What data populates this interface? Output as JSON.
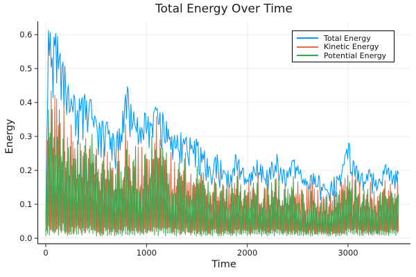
{
  "title": "Total Energy Over Time",
  "axes": {
    "xlabel": "Time",
    "ylabel": "Energy",
    "xticks": [
      "0",
      "1000",
      "2000",
      "3000"
    ],
    "yticks": [
      "0.0",
      "0.1",
      "0.2",
      "0.3",
      "0.4",
      "0.5",
      "0.6"
    ]
  },
  "legend": {
    "position": "top-right",
    "items": [
      {
        "label": "Total Energy"
      },
      {
        "label": "Kinetic Energy"
      },
      {
        "label": "Potential Energy"
      }
    ]
  },
  "chart_data": {
    "type": "line",
    "title": "Total Energy Over Time",
    "xlabel": "Time",
    "ylabel": "Energy",
    "xlim": [
      -85,
      3620
    ],
    "ylim": [
      -0.016,
      0.64
    ],
    "xticks": [
      0,
      1000,
      2000,
      3000
    ],
    "yticks": [
      0,
      0.1,
      0.2,
      0.3,
      0.4,
      0.5,
      0.6
    ],
    "grid": true,
    "legend_position": "top-right",
    "description": "Three densely oscillating energy traces of a damped oscillator. Kinetic and potential energy oscillate in antiphase between ~0 and their decaying envelopes (oscillation period ~18 time units); total energy is a noisy band riding along the top envelope. Envelope decays from ~0.62 at t~30 to ~0.2 by t~3500, with transient bursts near t~800 (0.47), t~1100 (0.45), t~2450 (0.26) and t~3000 (0.30).",
    "oscillation_period_t": 18,
    "t": [
      0,
      25,
      60,
      100,
      150,
      200,
      250,
      300,
      350,
      400,
      450,
      500,
      550,
      600,
      650,
      700,
      750,
      800,
      850,
      900,
      950,
      1000,
      1050,
      1100,
      1150,
      1200,
      1250,
      1300,
      1350,
      1400,
      1450,
      1500,
      1550,
      1600,
      1650,
      1700,
      1750,
      1800,
      1850,
      1900,
      1950,
      2000,
      2050,
      2100,
      2150,
      2200,
      2250,
      2300,
      2350,
      2400,
      2450,
      2500,
      2550,
      2600,
      2650,
      2700,
      2750,
      2800,
      2850,
      2900,
      2950,
      3000,
      3050,
      3100,
      3150,
      3200,
      3250,
      3300,
      3350,
      3400,
      3450,
      3500
    ],
    "series": [
      {
        "name": "Total Energy",
        "color": "#009AFA",
        "style": "noisy band between ~60% and 100% of envelope",
        "envelope_max": [
          0.1,
          0.62,
          0.6,
          0.62,
          0.56,
          0.5,
          0.44,
          0.42,
          0.45,
          0.42,
          0.44,
          0.38,
          0.35,
          0.38,
          0.34,
          0.32,
          0.36,
          0.47,
          0.39,
          0.37,
          0.34,
          0.39,
          0.42,
          0.45,
          0.38,
          0.35,
          0.31,
          0.34,
          0.31,
          0.33,
          0.29,
          0.31,
          0.27,
          0.25,
          0.23,
          0.26,
          0.22,
          0.21,
          0.23,
          0.26,
          0.21,
          0.23,
          0.21,
          0.24,
          0.22,
          0.2,
          0.23,
          0.25,
          0.21,
          0.2,
          0.26,
          0.22,
          0.19,
          0.18,
          0.2,
          0.19,
          0.17,
          0.16,
          0.18,
          0.2,
          0.23,
          0.3,
          0.25,
          0.21,
          0.19,
          0.22,
          0.2,
          0.17,
          0.21,
          0.23,
          0.19,
          0.21
        ]
      },
      {
        "name": "Kinetic Energy",
        "color": "#E36F47",
        "style": "rapid oscillation between ~0 and envelope",
        "envelope_max": [
          0.08,
          0.47,
          0.46,
          0.47,
          0.43,
          0.38,
          0.34,
          0.32,
          0.35,
          0.33,
          0.34,
          0.3,
          0.27,
          0.3,
          0.27,
          0.25,
          0.28,
          0.37,
          0.31,
          0.29,
          0.27,
          0.31,
          0.33,
          0.36,
          0.3,
          0.28,
          0.25,
          0.27,
          0.25,
          0.27,
          0.23,
          0.25,
          0.22,
          0.2,
          0.19,
          0.21,
          0.18,
          0.17,
          0.19,
          0.21,
          0.17,
          0.19,
          0.17,
          0.2,
          0.18,
          0.17,
          0.19,
          0.21,
          0.18,
          0.17,
          0.22,
          0.19,
          0.16,
          0.15,
          0.17,
          0.16,
          0.15,
          0.14,
          0.15,
          0.17,
          0.2,
          0.26,
          0.22,
          0.18,
          0.16,
          0.19,
          0.17,
          0.15,
          0.18,
          0.2,
          0.17,
          0.18
        ]
      },
      {
        "name": "Potential Energy",
        "color": "#3EA44E",
        "style": "rapid oscillation between ~0 and envelope, antiphase to kinetic",
        "envelope_max": [
          0.07,
          0.44,
          0.43,
          0.44,
          0.4,
          0.36,
          0.31,
          0.3,
          0.32,
          0.3,
          0.32,
          0.27,
          0.25,
          0.27,
          0.24,
          0.23,
          0.26,
          0.34,
          0.28,
          0.27,
          0.25,
          0.28,
          0.3,
          0.33,
          0.28,
          0.25,
          0.23,
          0.25,
          0.23,
          0.24,
          0.21,
          0.23,
          0.2,
          0.18,
          0.17,
          0.19,
          0.16,
          0.15,
          0.17,
          0.19,
          0.15,
          0.17,
          0.16,
          0.18,
          0.16,
          0.15,
          0.17,
          0.19,
          0.16,
          0.15,
          0.19,
          0.16,
          0.14,
          0.13,
          0.15,
          0.14,
          0.13,
          0.12,
          0.14,
          0.15,
          0.17,
          0.23,
          0.19,
          0.16,
          0.14,
          0.17,
          0.15,
          0.13,
          0.16,
          0.17,
          0.14,
          0.16
        ]
      }
    ]
  }
}
